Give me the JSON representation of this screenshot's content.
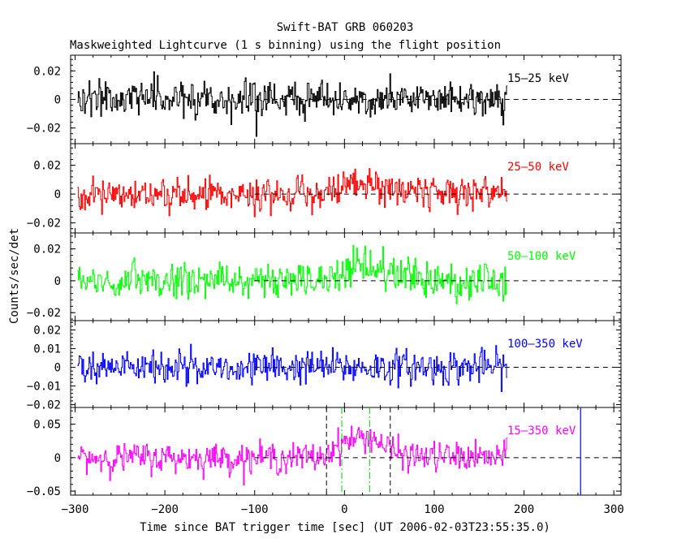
{
  "chart_data": {
    "type": "line",
    "title": "Swift-BAT GRB 060203",
    "subtitle": "Maskweighted Lightcurve (1 s binning) using the flight position",
    "xlabel": "Time since BAT trigger time [sec] (UT 2006-02-03T23:55:35.0)",
    "ylabel": "Counts/sec/det",
    "xlim": [
      -305,
      308
    ],
    "x_ticks": [
      -300,
      -200,
      -100,
      0,
      100,
      200,
      300
    ],
    "x_tick_labels": [
      "−300",
      "−200",
      "−100",
      "0",
      "100",
      "200",
      "300"
    ],
    "data_x_range": [
      -297,
      181
    ],
    "panels": [
      {
        "band": "15–25 keV",
        "color": "#000000",
        "ylim": [
          -0.031,
          0.031
        ],
        "y_ticks": [
          -0.02,
          0,
          0.02
        ],
        "y_tick_labels": [
          "−0.02",
          "0",
          "0.02"
        ],
        "noise_sigma": 0.0068,
        "profile": [
          [
            -297,
            0.0
          ],
          [
            181,
            0.0
          ]
        ]
      },
      {
        "band": "25–50 keV",
        "color": "#ff0000",
        "ylim": [
          -0.027,
          0.035
        ],
        "y_ticks": [
          -0.02,
          0,
          0.02
        ],
        "y_tick_labels": [
          "−0.02",
          "0",
          "0.02"
        ],
        "noise_sigma": 0.0065,
        "profile": [
          [
            -297,
            0.0
          ],
          [
            -20,
            0.0
          ],
          [
            0,
            0.005
          ],
          [
            30,
            0.007
          ],
          [
            60,
            0.002
          ],
          [
            181,
            0.0
          ]
        ]
      },
      {
        "band": "50–100 keV",
        "color": "#00ff00",
        "ylim": [
          -0.025,
          0.03
        ],
        "y_ticks": [
          -0.02,
          0,
          0.02
        ],
        "y_tick_labels": [
          "−0.02",
          "0",
          "0.02"
        ],
        "noise_sigma": 0.0068,
        "profile": [
          [
            -297,
            0.0
          ],
          [
            -20,
            0.0
          ],
          [
            0,
            0.008
          ],
          [
            30,
            0.007
          ],
          [
            60,
            0.002
          ],
          [
            181,
            0.0
          ]
        ]
      },
      {
        "band": "100–350 keV",
        "color": "#0000ff",
        "ylim": [
          -0.0215,
          0.025
        ],
        "y_ticks": [
          -0.02,
          -0.01,
          0,
          0.01,
          0.02
        ],
        "y_tick_labels": [
          "−0.02",
          "−0.01",
          "0",
          "0.01",
          "0.02"
        ],
        "noise_sigma": 0.0052,
        "profile": [
          [
            -297,
            0.0
          ],
          [
            181,
            0.0
          ]
        ]
      },
      {
        "band": "15–350 keV",
        "color": "#ff00ff",
        "ylim": [
          -0.056,
          0.075
        ],
        "y_ticks": [
          -0.05,
          0,
          0.05
        ],
        "y_tick_labels": [
          "−0.05",
          "0",
          "0.05"
        ],
        "noise_sigma": 0.0125,
        "profile": [
          [
            -297,
            0.0
          ],
          [
            -25,
            0.0
          ],
          [
            -10,
            0.018
          ],
          [
            10,
            0.028
          ],
          [
            30,
            0.032
          ],
          [
            50,
            0.012
          ],
          [
            70,
            0.002
          ],
          [
            181,
            0.0
          ]
        ]
      }
    ],
    "annotations": {
      "black_dashed_lines_x": [
        -20,
        51
      ],
      "green_dashdot_lines_x": [
        -3,
        28
      ],
      "blue_line_x": 263,
      "zero_dashed_from_x": -100
    }
  }
}
